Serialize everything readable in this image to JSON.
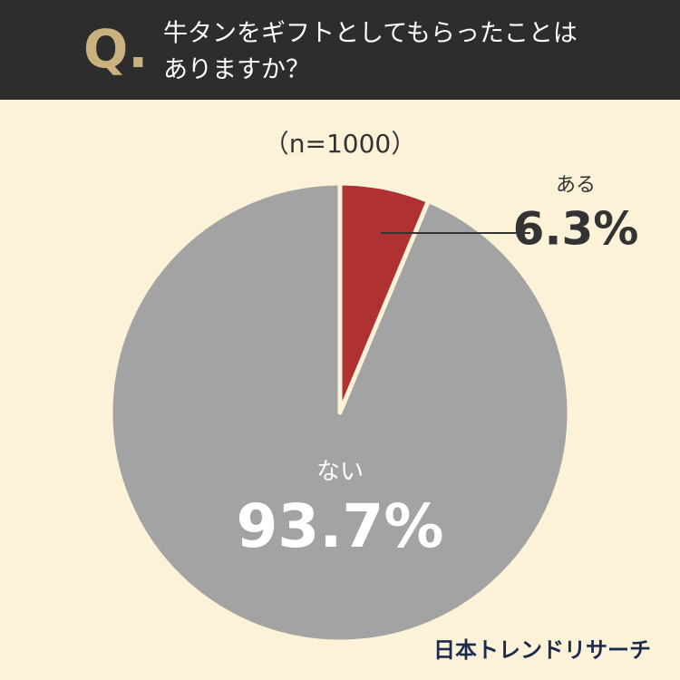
{
  "chart_data": {
    "type": "pie",
    "q_label": "Q.",
    "title": [
      "牛タンをギフトとしてもらったことは",
      "ありますか？"
    ],
    "note": "（n=1000）",
    "categories": [
      "ある",
      "ない"
    ],
    "values": [
      6.3,
      93.7
    ],
    "value_labels": [
      "6.3%",
      "93.7%"
    ],
    "colors": [
      "#b03131",
      "#a3a3a3"
    ],
    "source": "日本トレンドリサーチ"
  }
}
